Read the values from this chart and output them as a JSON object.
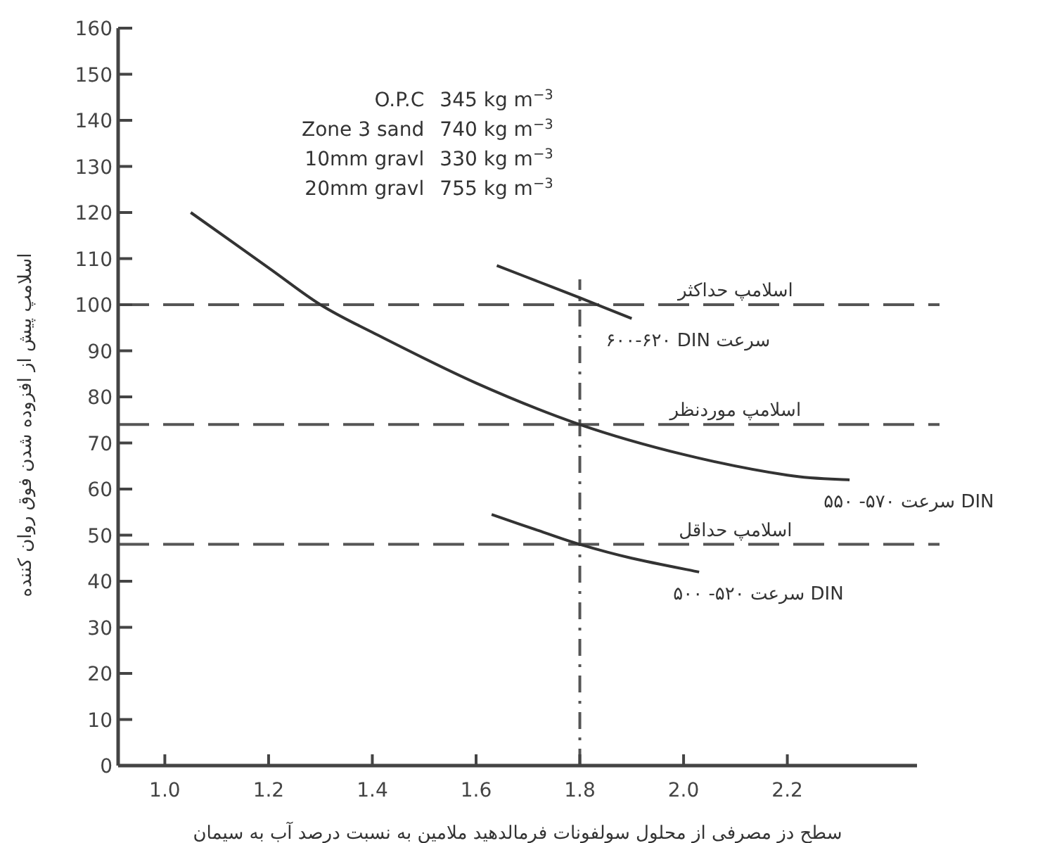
{
  "chart_data": {
    "type": "line",
    "xlabel": "سطح دز مصرفی از محلول سولفونات فرمالدهید ملامین به نسبت درصد آب به سیمان",
    "ylabel": "اسلامپ پیش از افزوده شدن فوق روان کننده",
    "xlim": [
      0.91,
      2.45
    ],
    "ylim": [
      0,
      160
    ],
    "xticks": [
      {
        "value": 1.0,
        "label": "1.0"
      },
      {
        "value": 1.2,
        "label": "1.2"
      },
      {
        "value": 1.4,
        "label": "1.4"
      },
      {
        "value": 1.6,
        "label": "1.6"
      },
      {
        "value": 1.8,
        "label": "1.8"
      },
      {
        "value": 2.0,
        "label": "2.0"
      },
      {
        "value": 2.2,
        "label": "2.2"
      }
    ],
    "yticks": [
      0,
      10,
      20,
      30,
      40,
      50,
      60,
      70,
      80,
      90,
      100,
      110,
      120,
      130,
      140,
      150,
      160
    ],
    "series": [
      {
        "name": "۶۰۰-۶۲۰ DIN سرعت",
        "color": "#333333",
        "x": [
          1.64,
          1.72,
          1.8,
          1.9
        ],
        "values": [
          108.5,
          105,
          101.5,
          97
        ]
      },
      {
        "name": "۵۵۰ -۵۷۰ سرعت DIN",
        "color": "#333333",
        "x": [
          1.05,
          1.2,
          1.3,
          1.4,
          1.6,
          1.8,
          2.0,
          2.2,
          2.32
        ],
        "values": [
          120,
          108,
          100,
          94,
          83,
          74,
          67.5,
          63,
          62
        ]
      },
      {
        "name": "۵۰۰ -۵۲۰ سرعت DIN",
        "color": "#333333",
        "x": [
          1.63,
          1.72,
          1.8,
          1.9,
          2.03
        ],
        "values": [
          54.5,
          51,
          48,
          45,
          42
        ]
      }
    ],
    "ref_lines": [
      {
        "axis": "y",
        "value": 100,
        "label": "اسلامپ حداکثر",
        "color": "#555555",
        "line_style": "dashed"
      },
      {
        "axis": "y",
        "value": 74,
        "label": "اسلامپ موردنظر",
        "color": "#555555",
        "line_style": "dashed"
      },
      {
        "axis": "y",
        "value": 48,
        "label": "اسلامپ حداقل",
        "color": "#555555",
        "line_style": "dashed"
      },
      {
        "axis": "x",
        "value": 1.8,
        "color": "#555555",
        "line_style": "dashdot"
      }
    ],
    "annotations": [
      "O.P.C",
      "345 kg m$^{−3}$",
      "Zone 3 sand",
      "740 kg m$^{−3}$",
      "10mm gravl",
      "330 kg m$^{−3}$",
      "20mm gravl",
      "755 kg m$^{−3}$"
    ],
    "grid": false
  }
}
